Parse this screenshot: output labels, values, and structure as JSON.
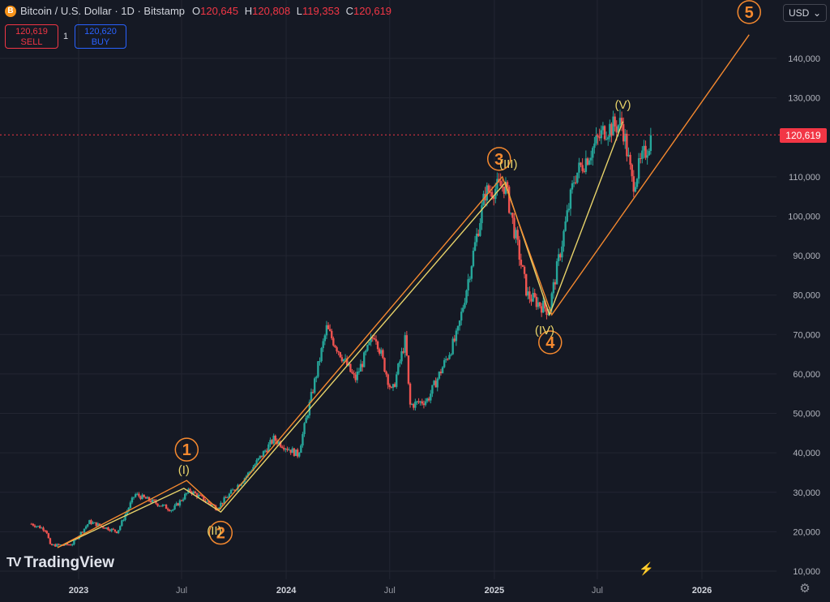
{
  "header": {
    "symbol_icon": "B",
    "symbol": "Bitcoin / U.S. Dollar · 1D · Bitstamp",
    "open_label": "O",
    "open": "120,645",
    "high_label": "H",
    "high": "120,808",
    "low_label": "L",
    "low": "119,353",
    "close_label": "C",
    "close": "120,619"
  },
  "trade": {
    "sell_price": "120,619",
    "sell_label": "SELL",
    "buy_price": "120,620",
    "buy_label": "BUY",
    "quantity": "1"
  },
  "currency": {
    "value": "USD",
    "arrow_icon": "chevron-down-icon"
  },
  "last_price_tag": "120,619",
  "brand": {
    "name": "TradingView"
  },
  "icons": {
    "settings": "gear-icon",
    "assistant": "spark-icon"
  },
  "colors": {
    "up": "#26a69a",
    "down": "#ef5350",
    "wave_major": "#f5892f",
    "wave_minor": "#e8d36a",
    "last_price": "#f23645",
    "background": "#151924"
  },
  "chart_data": {
    "type": "line",
    "series_style": "candlestick",
    "x_ticks": [
      "2023",
      "Jul",
      "2024",
      "Jul",
      "2025",
      "Jul",
      "2026"
    ],
    "y_ticks": [
      "10,000",
      "20,000",
      "30,000",
      "40,000",
      "50,000",
      "60,000",
      "70,000",
      "80,000",
      "90,000",
      "100,000",
      "110,000",
      "130,000",
      "140,000"
    ],
    "ylim": [
      8000,
      150000
    ],
    "last_price": 120619,
    "price_series": [
      {
        "x": "2022-10-10",
        "y": 22000
      },
      {
        "x": "2022-11-05",
        "y": 20500
      },
      {
        "x": "2022-11-12",
        "y": 16500
      },
      {
        "x": "2022-12-20",
        "y": 16800
      },
      {
        "x": "2023-01-20",
        "y": 22500
      },
      {
        "x": "2023-03-10",
        "y": 20000
      },
      {
        "x": "2023-04-10",
        "y": 29500
      },
      {
        "x": "2023-06-15",
        "y": 25500
      },
      {
        "x": "2023-07-15",
        "y": 30500
      },
      {
        "x": "2023-09-01",
        "y": 26000
      },
      {
        "x": "2023-10-25",
        "y": 34500
      },
      {
        "x": "2023-12-10",
        "y": 43500
      },
      {
        "x": "2024-01-22",
        "y": 39500
      },
      {
        "x": "2024-03-12",
        "y": 71500
      },
      {
        "x": "2024-05-01",
        "y": 58500
      },
      {
        "x": "2024-06-05",
        "y": 70500
      },
      {
        "x": "2024-07-05",
        "y": 55000
      },
      {
        "x": "2024-07-29",
        "y": 69000
      },
      {
        "x": "2024-08-05",
        "y": 52000
      },
      {
        "x": "2024-09-06",
        "y": 53500
      },
      {
        "x": "2024-10-28",
        "y": 70000
      },
      {
        "x": "2024-12-16",
        "y": 106000
      },
      {
        "x": "2025-01-20",
        "y": 108000
      },
      {
        "x": "2025-02-28",
        "y": 80000
      },
      {
        "x": "2025-04-07",
        "y": 76000
      },
      {
        "x": "2025-05-22",
        "y": 110000
      },
      {
        "x": "2025-07-14",
        "y": 122000
      },
      {
        "x": "2025-08-14",
        "y": 123500
      },
      {
        "x": "2025-09-01",
        "y": 108000
      },
      {
        "x": "2025-10-05",
        "y": 120619
      }
    ],
    "waves_major": [
      {
        "label": "1",
        "x": "2023-07-10",
        "y": 33000
      },
      {
        "label": "2",
        "x": "2023-09-05",
        "y": 25500
      },
      {
        "label": "3",
        "x": "2025-01-15",
        "y": 110000
      },
      {
        "label": "4",
        "x": "2025-04-12",
        "y": 75000
      },
      {
        "label": "5",
        "x": "2026-03-25",
        "y": 146000
      }
    ],
    "waves_minor": [
      {
        "label": "(I)",
        "x": "2023-07-05",
        "y": 31000
      },
      {
        "label": "(II)",
        "x": "2023-09-08",
        "y": 25000
      },
      {
        "label": "(III)",
        "x": "2025-01-20",
        "y": 108500
      },
      {
        "label": "(IV)",
        "x": "2025-04-08",
        "y": 75000
      },
      {
        "label": "(V)",
        "x": "2025-08-15",
        "y": 124000
      }
    ],
    "wave_start": {
      "x": "2022-11-25",
      "y": 16000
    }
  }
}
